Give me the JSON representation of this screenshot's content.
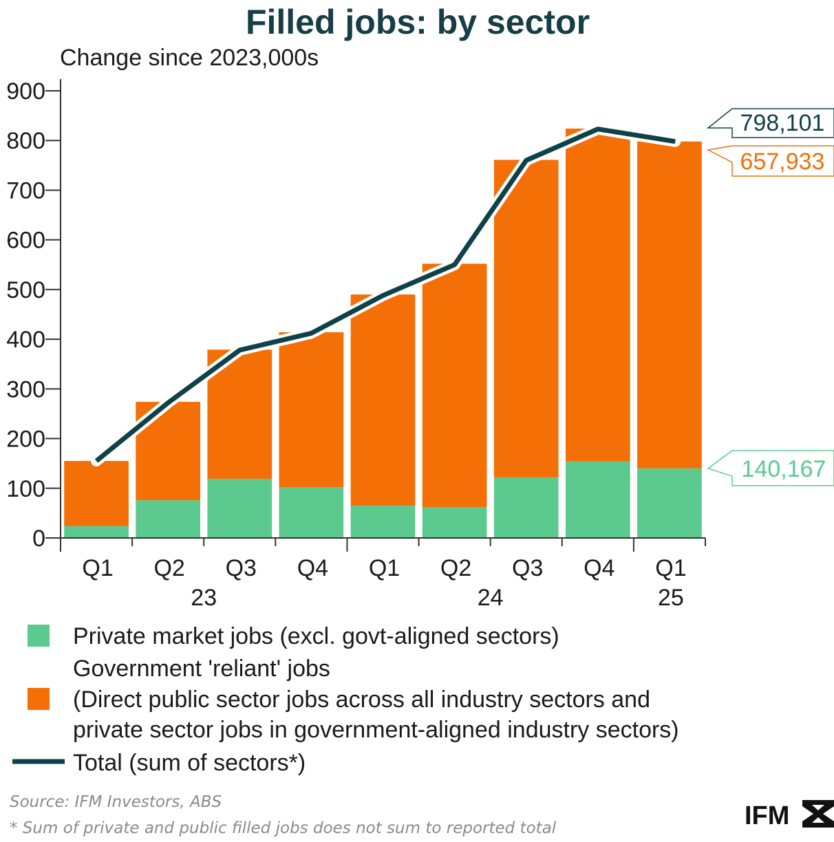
{
  "chart_data": {
    "type": "bar",
    "stacked": true,
    "title": "Filled jobs: by sector",
    "subtitle": "Change since 2023,000s",
    "categories": [
      "Q1",
      "Q2",
      "Q3",
      "Q4",
      "Q1",
      "Q2",
      "Q3",
      "Q4",
      "Q1"
    ],
    "year_labels": [
      "23",
      "24",
      "25"
    ],
    "series": [
      {
        "name": "Private market jobs (excl. govt-aligned sectors)",
        "type": "bar",
        "color": "#5cc98f",
        "values": [
          24,
          76,
          119,
          102,
          65,
          62,
          122,
          154,
          140
        ]
      },
      {
        "name": "Government 'reliant' jobs (Direct public sector jobs across all industry sectors and private sector jobs in government-aligned industry sectors)",
        "type": "bar",
        "color": "#f46f06",
        "values": [
          131,
          198,
          260,
          312,
          425,
          490,
          639,
          670,
          658
        ]
      },
      {
        "name": "Total (sum of sectors*)",
        "type": "line",
        "color": "#0f4149",
        "values": [
          155,
          272,
          378,
          412,
          488,
          550,
          760,
          823,
          798
        ]
      }
    ],
    "yticks": [
      0,
      100,
      200,
      300,
      400,
      500,
      600,
      700,
      800,
      900
    ],
    "ylim": [
      0,
      900
    ],
    "grid": false,
    "callouts": {
      "total": "798,101",
      "government": "657,933",
      "private": "140,167"
    },
    "legend": {
      "private": "Private market jobs (excl. govt-aligned sectors)",
      "government_line1": "Government 'reliant' jobs",
      "government_line2": "(Direct public sector jobs across all industry sectors and",
      "government_line3": "private sector jobs in government-aligned industry sectors)",
      "total": "Total (sum of sectors*)"
    }
  },
  "footer": {
    "source": "Source: IFM Investors, ABS",
    "note": "* Sum of private and public filled jobs does not sum to reported total",
    "logo": "IFM"
  },
  "colors": {
    "private": "#5cc98f",
    "government": "#f46f06",
    "total": "#0f4149"
  }
}
